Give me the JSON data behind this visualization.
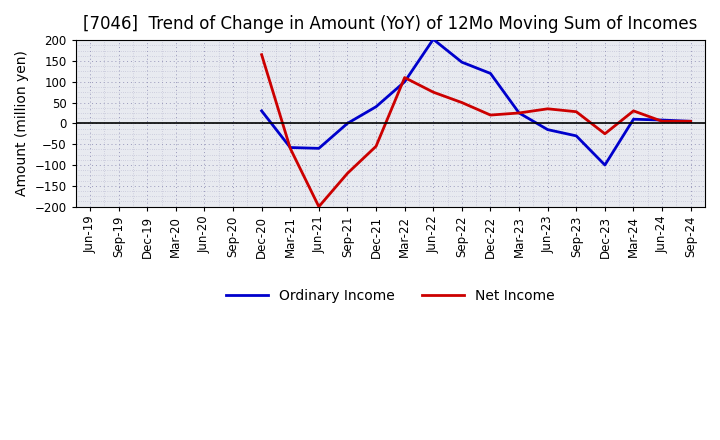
{
  "title": "[7046]  Trend of Change in Amount (YoY) of 12Mo Moving Sum of Incomes",
  "ylabel": "Amount (million yen)",
  "background_color": "#ffffff",
  "plot_bg_color": "#e8eaf0",
  "grid_color": "#9999bb",
  "title_fontsize": 12,
  "axis_label_fontsize": 10,
  "tick_fontsize": 8.5,
  "legend_fontsize": 10,
  "line_width": 2.0,
  "tick_labels": [
    "Jun-19",
    "Sep-19",
    "Dec-19",
    "Mar-20",
    "Jun-20",
    "Sep-20",
    "Dec-20",
    "Mar-21",
    "Jun-21",
    "Sep-21",
    "Dec-21",
    "Mar-22",
    "Jun-22",
    "Sep-22",
    "Dec-22",
    "Mar-23",
    "Jun-23",
    "Sep-23",
    "Dec-23",
    "Mar-24",
    "Jun-24",
    "Sep-24"
  ],
  "ordinary_income": [
    null,
    null,
    null,
    null,
    null,
    null,
    30,
    -58,
    -60,
    0,
    40,
    100,
    202,
    147,
    120,
    25,
    -15,
    -30,
    -100,
    10,
    8,
    5
  ],
  "net_income": [
    null,
    null,
    null,
    null,
    null,
    null,
    165,
    -60,
    -200,
    -120,
    -55,
    110,
    75,
    50,
    20,
    25,
    35,
    28,
    -25,
    30,
    5,
    5
  ],
  "ordinary_color": "#0000cc",
  "net_color": "#cc0000",
  "ylim": [
    -200,
    200
  ],
  "yticks": [
    -200,
    -150,
    -100,
    -50,
    0,
    50,
    100,
    150,
    200
  ]
}
